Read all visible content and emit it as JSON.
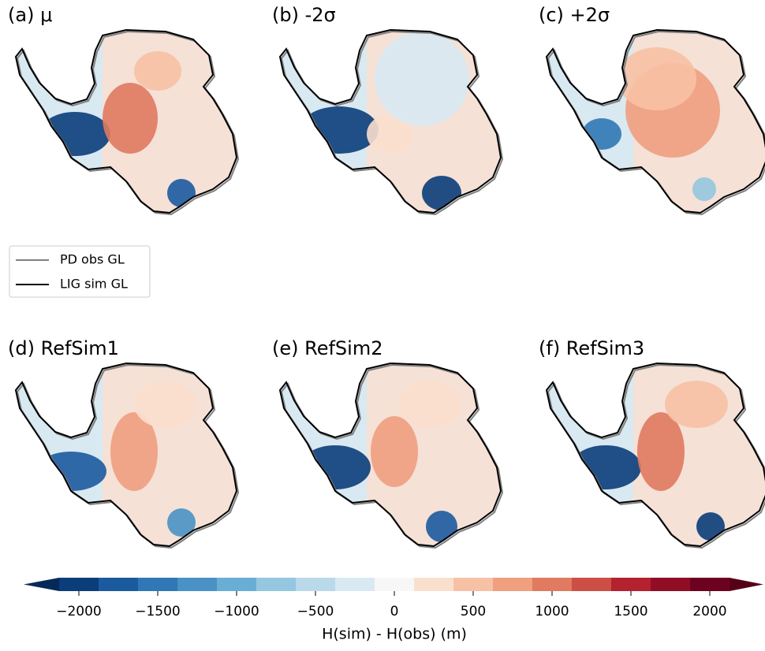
{
  "panels": [
    {
      "label": "(a) μ"
    },
    {
      "label": "(b) -2σ"
    },
    {
      "label": "(c) +2σ"
    },
    {
      "label": "(d) RefSim1"
    },
    {
      "label": "(e) RefSim2"
    },
    {
      "label": "(f) RefSim3"
    }
  ],
  "legend": {
    "entries": [
      {
        "name": "PD obs GL",
        "color": "#808080"
      },
      {
        "name": "LIG sim GL",
        "color": "#000000"
      }
    ]
  },
  "colorbar": {
    "label": "H(sim) - H(obs) (m)",
    "levels": [
      -2125,
      -1875,
      -1625,
      -1375,
      -1125,
      -875,
      -625,
      -375,
      -125,
      125,
      375,
      625,
      875,
      1125,
      1375,
      1625,
      1875,
      2125
    ],
    "colors": [
      "#0b3d7a",
      "#1c5a9e",
      "#2f78b5",
      "#4a92c5",
      "#6aaed5",
      "#95c7e0",
      "#bad9ea",
      "#d9e9f2",
      "#f7f7f7",
      "#fbdfce",
      "#f7c1a5",
      "#f09f7f",
      "#e07a61",
      "#cc4f45",
      "#b4212f",
      "#910d26",
      "#6d0220"
    ],
    "extend_colors": [
      "#062a58",
      "#560018"
    ],
    "ticks": [
      {
        "value": -2000,
        "label": "−2000"
      },
      {
        "value": -1500,
        "label": "−1500"
      },
      {
        "value": -1000,
        "label": "−1000"
      },
      {
        "value": -500,
        "label": "−500"
      },
      0,
      500,
      1000,
      1500,
      2000
    ]
  }
}
